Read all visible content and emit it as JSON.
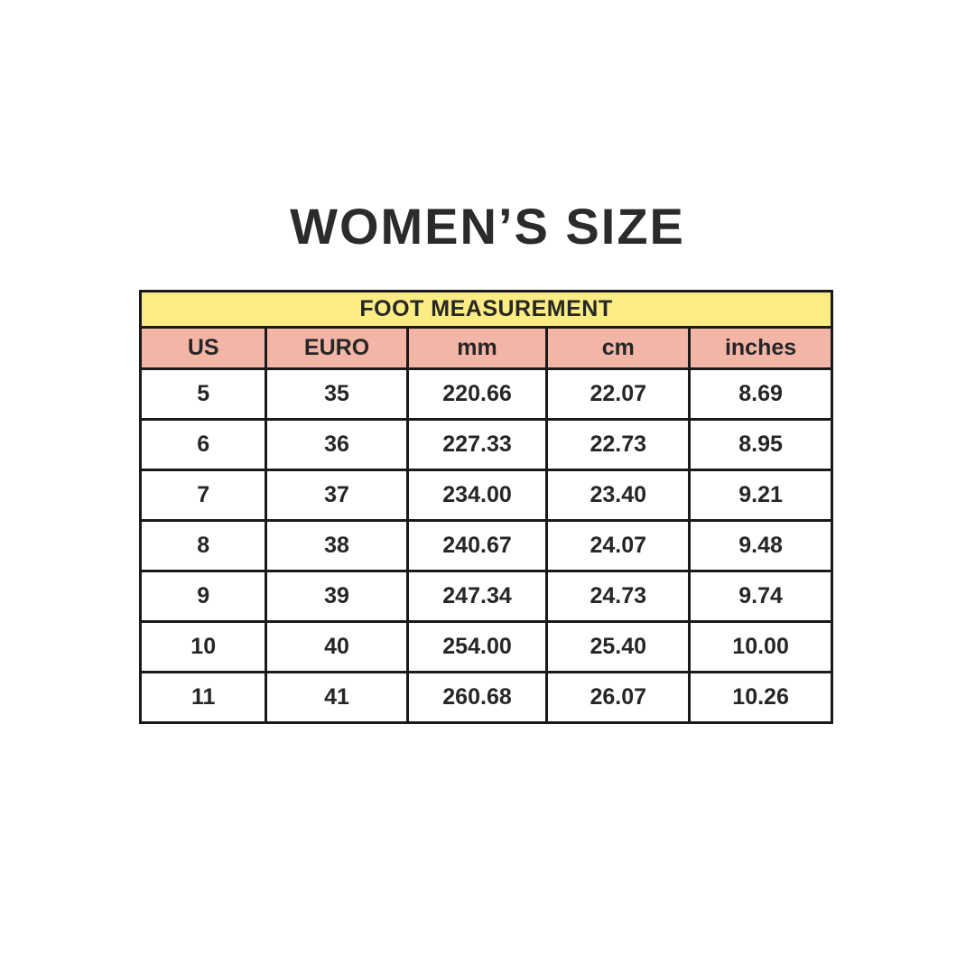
{
  "title": "WOMEN’S SIZE",
  "colors": {
    "group_header_bg": "#FBEC84",
    "column_header_bg": "#F3B6A6",
    "border": "#1A1A1A",
    "text": "#262626",
    "background": "#FFFFFF"
  },
  "chart_data": {
    "type": "table",
    "title": "WOMEN’S SIZE",
    "group_header": "FOOT MEASUREMENT",
    "columns": [
      "US",
      "EURO",
      "mm",
      "cm",
      "inches"
    ],
    "rows": [
      [
        "5",
        "35",
        "220.66",
        "22.07",
        "8.69"
      ],
      [
        "6",
        "36",
        "227.33",
        "22.73",
        "8.95"
      ],
      [
        "7",
        "37",
        "234.00",
        "23.40",
        "9.21"
      ],
      [
        "8",
        "38",
        "240.67",
        "24.07",
        "9.48"
      ],
      [
        "9",
        "39",
        "247.34",
        "24.73",
        "9.74"
      ],
      [
        "10",
        "40",
        "254.00",
        "25.40",
        "10.00"
      ],
      [
        "11",
        "41",
        "260.68",
        "26.07",
        "10.26"
      ]
    ]
  }
}
